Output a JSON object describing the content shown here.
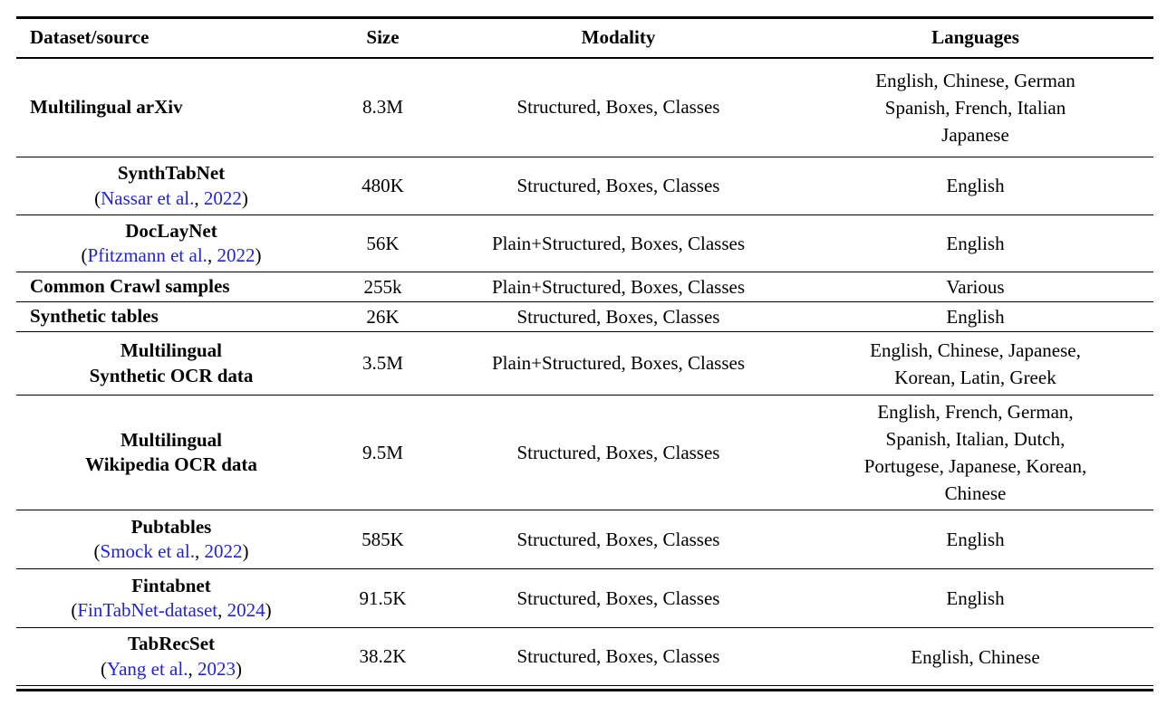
{
  "colors": {
    "text": "#000000",
    "citation_link_blue": "#2222DD",
    "rule": "#000000",
    "background": "#FFFFFF"
  },
  "punct": {
    "open": "(",
    "comma": ", ",
    "close": ")"
  },
  "table": {
    "headers": [
      {
        "label": "Dataset/source"
      },
      {
        "label": "Size"
      },
      {
        "label": "Modality"
      },
      {
        "label": "Languages"
      }
    ],
    "rows": [
      {
        "dataset_name": "Multilingual arXiv",
        "size": "8.3M",
        "modality": "Structured, Boxes, Classes",
        "languages": "English, Chinese, German\nSpanish, French, Italian\nJapanese"
      },
      {
        "dataset_name": "SynthTabNet",
        "cite_authors": "Nassar et al.",
        "cite_year": "2022",
        "size": "480K",
        "modality": "Structured, Boxes, Classes",
        "languages": "English"
      },
      {
        "dataset_name": "DocLayNet",
        "cite_authors": "Pfitzmann et al.",
        "cite_year": "2022",
        "size": "56K",
        "modality": "Plain+Structured, Boxes, Classes",
        "languages": "English"
      },
      {
        "dataset_name": "Common Crawl samples",
        "size": "255k",
        "modality": "Plain+Structured, Boxes, Classes",
        "languages": "Various"
      },
      {
        "dataset_name": "Synthetic tables",
        "size": "26K",
        "modality": "Structured, Boxes, Classes",
        "languages": "English"
      },
      {
        "dataset_name": "Multilingual\nSynthetic OCR data",
        "size": "3.5M",
        "modality": "Plain+Structured, Boxes, Classes",
        "languages": "English, Chinese, Japanese,\nKorean, Latin, Greek"
      },
      {
        "dataset_name": "Multilingual\nWikipedia OCR data",
        "size": "9.5M",
        "modality": "Structured, Boxes, Classes",
        "languages": "English, French, German,\nSpanish, Italian, Dutch,\nPortugese, Japanese, Korean,\nChinese"
      },
      {
        "dataset_name": "Pubtables",
        "cite_authors": "Smock et al.",
        "cite_year": "2022",
        "size": "585K",
        "modality": "Structured, Boxes, Classes",
        "languages": "English"
      },
      {
        "dataset_name": "Fintabnet",
        "cite_authors": "FinTabNet-dataset",
        "cite_year": "2024",
        "size": "91.5K",
        "modality": "Structured, Boxes, Classes",
        "languages": "English"
      },
      {
        "dataset_name": "TabRecSet",
        "cite_authors": "Yang et al.",
        "cite_year": "2023",
        "size": "38.2K",
        "modality": "Structured, Boxes, Classes",
        "languages": "English, Chinese"
      }
    ]
  }
}
